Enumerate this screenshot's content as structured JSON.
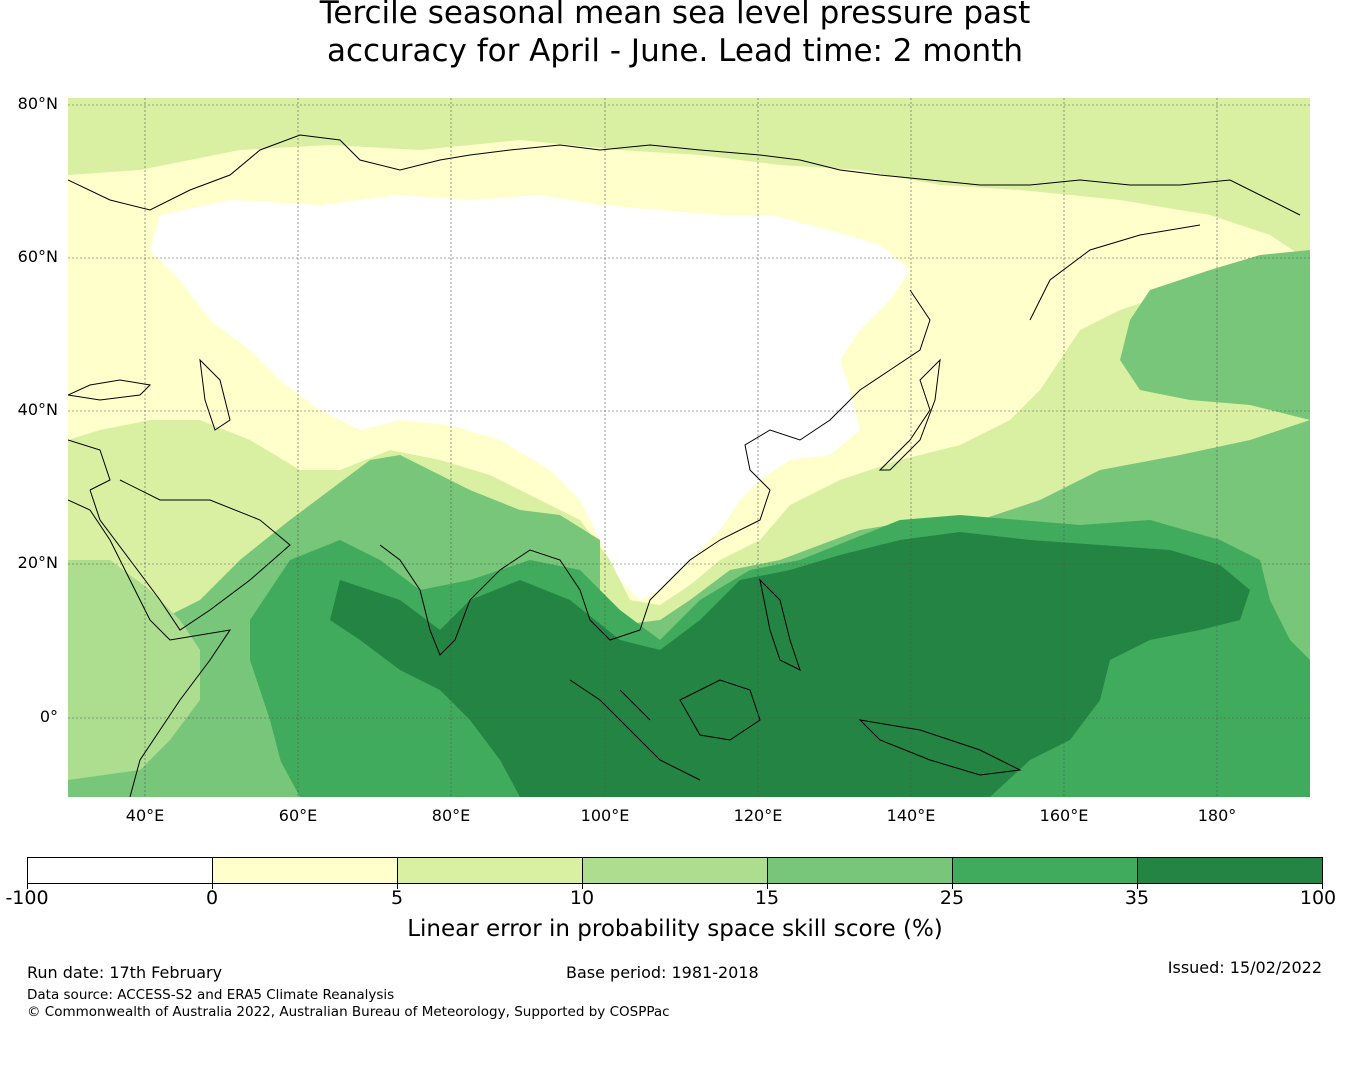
{
  "title": {
    "line1": "Tercile seasonal mean sea level pressure past",
    "line2": "accuracy for April - June. Lead time: 2 month"
  },
  "map": {
    "lat_labels": [
      "80°N",
      "60°N",
      "40°N",
      "20°N",
      "0°"
    ],
    "lon_labels": [
      "40°E",
      "60°E",
      "80°E",
      "100°E",
      "120°E",
      "140°E",
      "160°E",
      "180°"
    ],
    "lat_range": [
      -10,
      81
    ],
    "lon_range": [
      30,
      192
    ],
    "gridlines": true
  },
  "colorbar": {
    "ticks": [
      "-100",
      "0",
      "5",
      "10",
      "15",
      "25",
      "35",
      "100"
    ],
    "colors": [
      "#ffffff",
      "#ffffcc",
      "#d9f0a3",
      "#addd8e",
      "#78c679",
      "#41ab5d",
      "#238443"
    ],
    "label": "Linear error in probability space skill score (%)"
  },
  "footer": {
    "run_date": "Run date: 17th February",
    "base_period": "Base period: 1981-2018",
    "issued": "Issued: 15/02/2022",
    "data_source": "Data source: ACCESS-S2 and ERA5 Climate Reanalysis",
    "copyright": "© Commonwealth of Australia 2022, Australian Bureau of Meteorology, Supported by COSPPac"
  }
}
